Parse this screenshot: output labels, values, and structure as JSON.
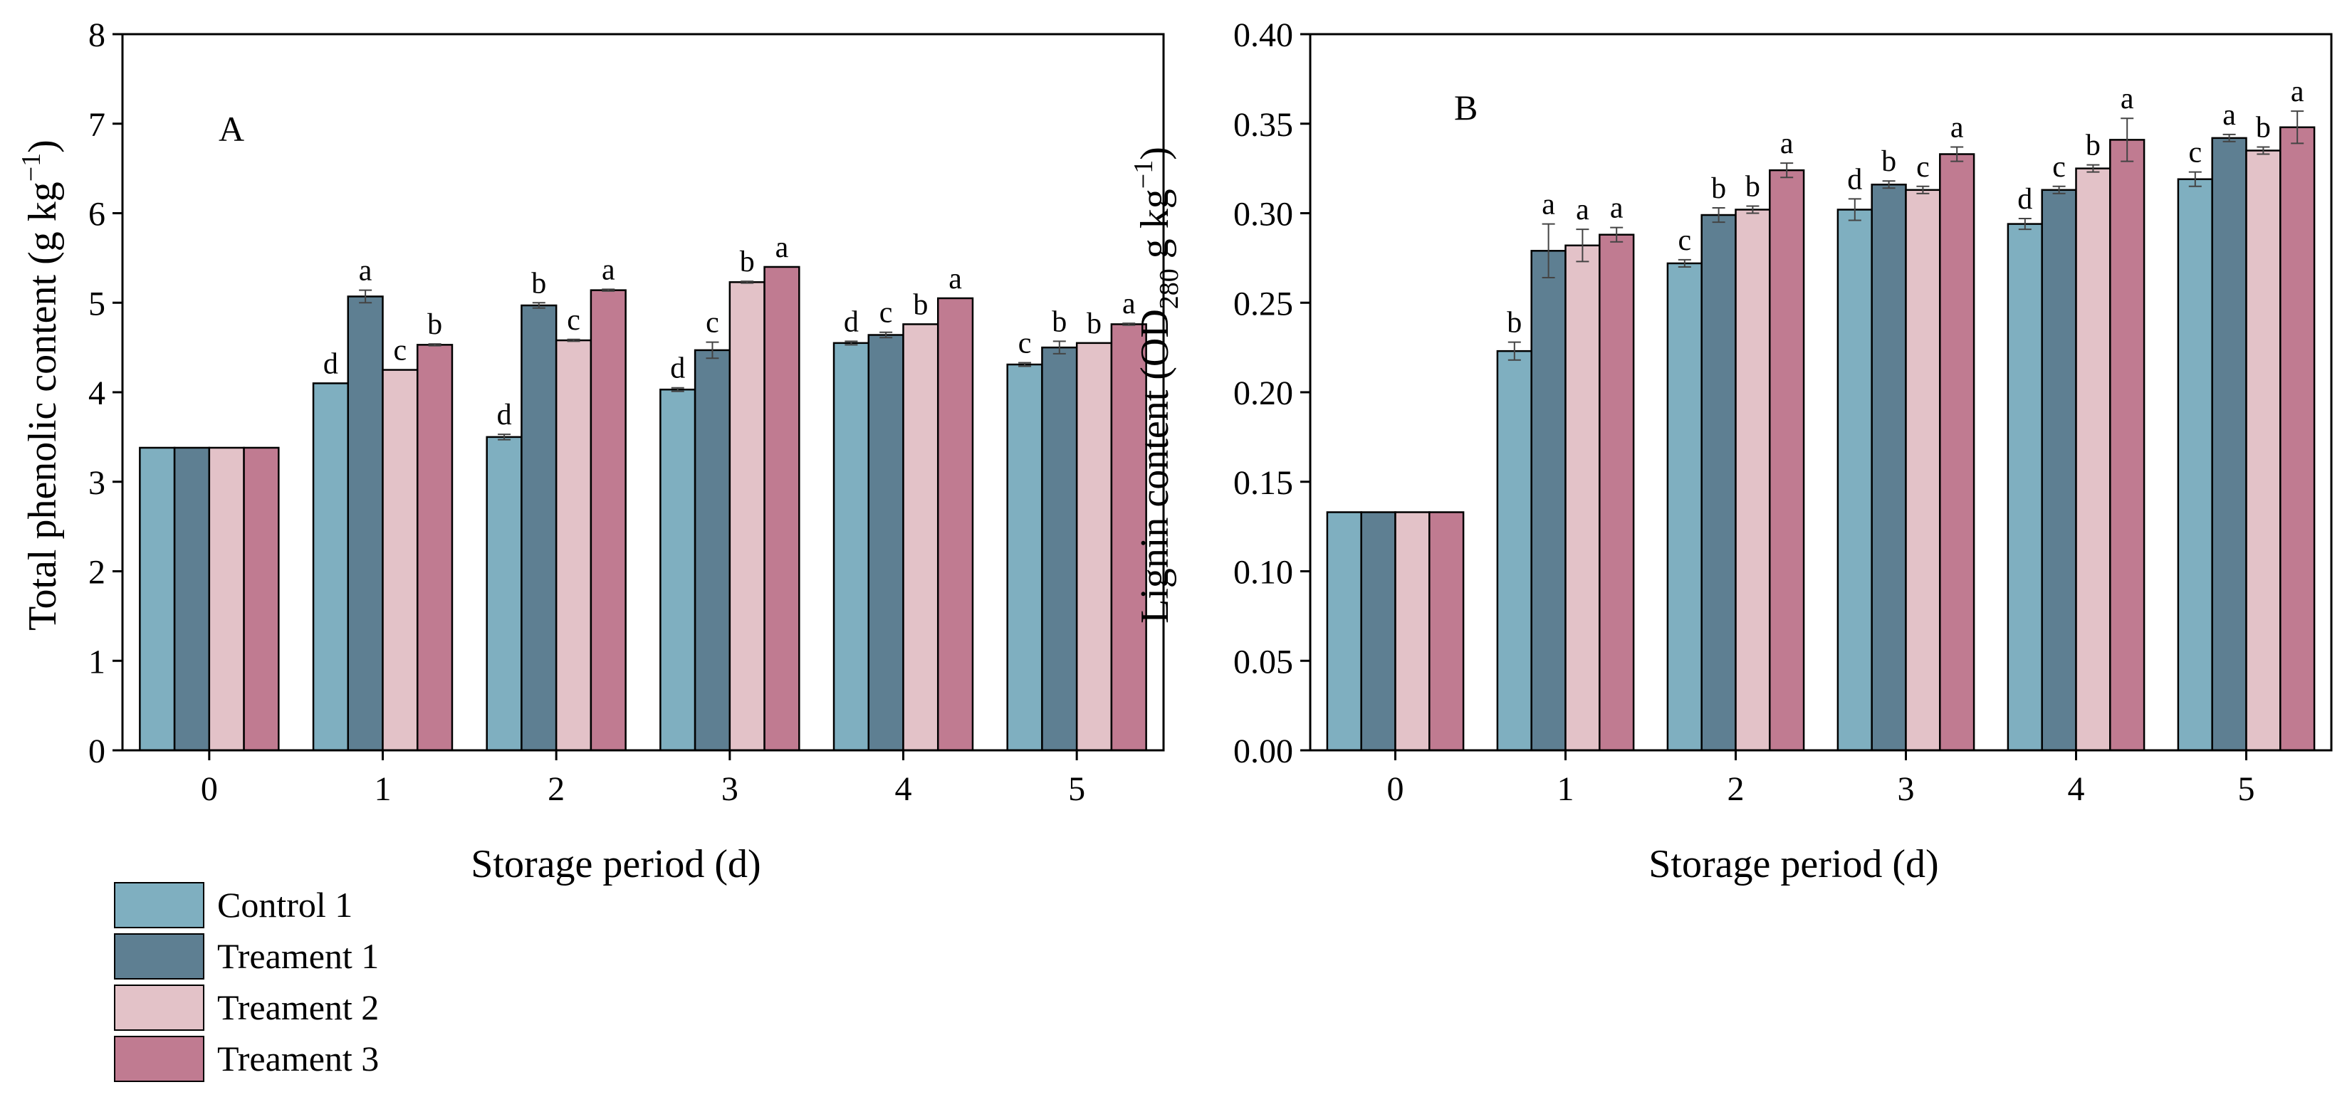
{
  "colors": {
    "control1": "#7FAFC0",
    "treatment1": "#5E7F92",
    "treatment2": "#E3C2C8",
    "treatment3": "#C07B91"
  },
  "legend": {
    "items": [
      {
        "label": "Control 1",
        "color_key": "control1"
      },
      {
        "label": "Treament 1",
        "color_key": "treatment1"
      },
      {
        "label": "Treament 2",
        "color_key": "treatment2"
      },
      {
        "label": "Treament 3",
        "color_key": "treatment3"
      }
    ]
  },
  "chart_data": [
    {
      "type": "bar",
      "panel_label": "A",
      "title": "",
      "xlabel": "Storage period (d)",
      "ylabel": {
        "base": "Total phenolic content (g kg",
        "superscript": "−1",
        "suffix": ")"
      },
      "categories": [
        "0",
        "1",
        "2",
        "3",
        "4",
        "5"
      ],
      "ylim": [
        0,
        8
      ],
      "yticks": [
        "0",
        "1",
        "2",
        "3",
        "4",
        "5",
        "6",
        "7",
        "8"
      ],
      "series": [
        {
          "name": "Control 1",
          "values": [
            3.38,
            4.1,
            3.5,
            4.03,
            4.55,
            4.31
          ],
          "errors": [
            0,
            0,
            0.03,
            0.02,
            0.02,
            0.02
          ],
          "letters": [
            "",
            "d",
            "d",
            "d",
            "d",
            "c"
          ]
        },
        {
          "name": "Treament 1",
          "values": [
            3.38,
            5.07,
            4.97,
            4.47,
            4.64,
            4.5
          ],
          "errors": [
            0,
            0.07,
            0.03,
            0.09,
            0.03,
            0.07
          ],
          "letters": [
            "",
            "a",
            "b",
            "c",
            "c",
            "b"
          ]
        },
        {
          "name": "Treament 2",
          "values": [
            3.38,
            4.25,
            4.58,
            5.23,
            4.76,
            4.55
          ],
          "errors": [
            0,
            0,
            0.01,
            0.01,
            0,
            0
          ],
          "letters": [
            "",
            "c",
            "c",
            "b",
            "b",
            "b"
          ]
        },
        {
          "name": "Treament 3",
          "values": [
            3.38,
            4.53,
            5.14,
            5.4,
            5.05,
            4.76
          ],
          "errors": [
            0,
            0.01,
            0.01,
            0,
            0,
            0.01
          ],
          "letters": [
            "",
            "b",
            "a",
            "a",
            "a",
            "a"
          ]
        }
      ]
    },
    {
      "type": "bar",
      "panel_label": "B",
      "title": "",
      "xlabel": "Storage period (d)",
      "ylabel": {
        "base": "Lignin content (OD",
        "subscript": "280",
        "middle": " g kg",
        "superscript": "−1",
        "suffix": ")"
      },
      "categories": [
        "0",
        "1",
        "2",
        "3",
        "4",
        "5"
      ],
      "ylim": [
        0,
        0.4
      ],
      "yticks": [
        "0.00",
        "0.05",
        "0.10",
        "0.15",
        "0.20",
        "0.25",
        "0.30",
        "0.35",
        "0.40"
      ],
      "series": [
        {
          "name": "Control 1",
          "values": [
            0.133,
            0.223,
            0.272,
            0.302,
            0.294,
            0.319
          ],
          "errors": [
            0,
            0.005,
            0.002,
            0.006,
            0.003,
            0.004
          ],
          "letters": [
            "",
            "b",
            "c",
            "d",
            "d",
            "c"
          ]
        },
        {
          "name": "Treament 1",
          "values": [
            0.133,
            0.279,
            0.299,
            0.316,
            0.313,
            0.342
          ],
          "errors": [
            0,
            0.015,
            0.004,
            0.002,
            0.002,
            0.002
          ],
          "letters": [
            "",
            "a",
            "b",
            "b",
            "c",
            "a"
          ]
        },
        {
          "name": "Treament 2",
          "values": [
            0.133,
            0.282,
            0.302,
            0.313,
            0.325,
            0.335
          ],
          "errors": [
            0,
            0.009,
            0.002,
            0.002,
            0.002,
            0.002
          ],
          "letters": [
            "",
            "a",
            "b",
            "c",
            "b",
            "b"
          ]
        },
        {
          "name": "Treament 3",
          "values": [
            0.133,
            0.288,
            0.324,
            0.333,
            0.341,
            0.348
          ],
          "errors": [
            0,
            0.004,
            0.004,
            0.004,
            0.012,
            0.009
          ],
          "letters": [
            "",
            "a",
            "a",
            "a",
            "a",
            "a"
          ]
        }
      ]
    }
  ]
}
